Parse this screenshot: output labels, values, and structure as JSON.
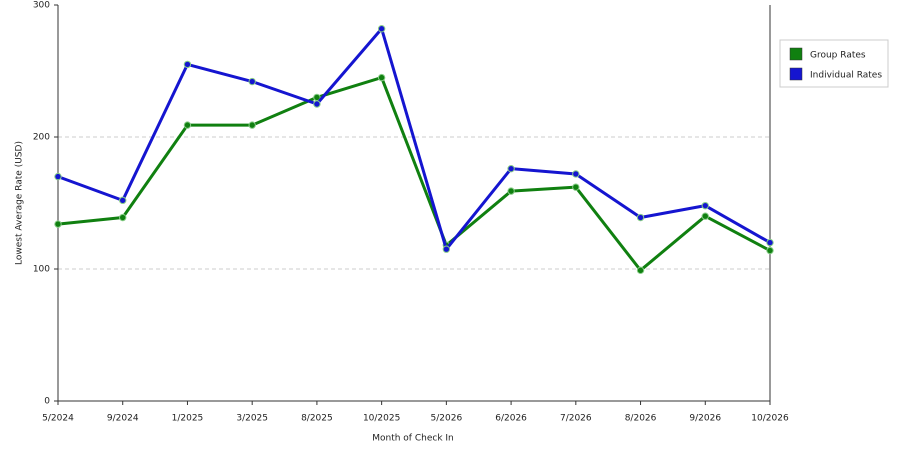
{
  "chart_data": {
    "type": "line",
    "x_label": "Month of Check In",
    "y_label": "Lowest Average Rate (USD)",
    "categories": [
      "5/2024",
      "9/2024",
      "1/2025",
      "3/2025",
      "8/2025",
      "10/2025",
      "5/2026",
      "6/2026",
      "7/2026",
      "8/2026",
      "9/2026",
      "10/2026"
    ],
    "series": [
      {
        "name": "Group Rates",
        "color": "#108010",
        "values": [
          134,
          139,
          209,
          209,
          230,
          245,
          118,
          159,
          162,
          99,
          140,
          114
        ]
      },
      {
        "name": "Individual Rates",
        "color": "#1515d0",
        "values": [
          170,
          152,
          255,
          242,
          225,
          282,
          115,
          176,
          172,
          139,
          148,
          120
        ]
      }
    ],
    "ylim": [
      0,
      300
    ],
    "yticks": [
      0,
      100,
      200,
      300
    ],
    "grid": true
  }
}
